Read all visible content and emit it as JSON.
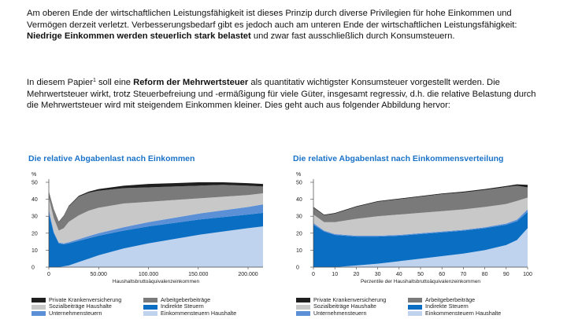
{
  "paragraph1": {
    "text_a": "Am oberen Ende der wirtschaftlichen Leistungsfähigkeit ist dieses Prinzip durch diverse Privilegien für hohe Einkommen und Vermögen derzeit verletzt. Verbesserungsbedarf gibt es jedoch auch am unteren Ende der wirtschaftlichen Leistungsfähigkeit: ",
    "bold": "Niedrige Einkommen werden steuerlich stark belastet",
    "text_b": " und zwar fast ausschließlich durch Konsumsteuern."
  },
  "paragraph2": {
    "text_a": "In diesem Papier",
    "footnote": "1",
    "text_b": " soll eine ",
    "bold": "Reform der Mehrwertsteuer",
    "text_c": " als quantitativ wichtigster Konsumsteuer vorgestellt werden. Die Mehrwertsteuer wirkt, trotz Steuerbefreiung und -ermäßigung für viele Güter, insgesamt regressiv, d.h. die relative Belastung durch die Mehrwertsteuer wird mit steigendem Einkommen kleiner. Dies geht auch aus folgender Abbildung hervor:"
  },
  "colors": {
    "private_kv": "#1f1f1f",
    "sozialbeitraege": "#c8c8c8",
    "unternehmensteuern": "#5b8fd6",
    "arbeitgeberbeitraege": "#7a7a7a",
    "indirekte_steuern": "#0a6fc2",
    "einkommensteuern": "#bfd3ef",
    "title": "#1a73c9"
  },
  "legend": [
    {
      "label": "Private Krankenversicherung",
      "color_key": "private_kv"
    },
    {
      "label": "Arbeitgeberbeiträge",
      "color_key": "arbeitgeberbeitraege"
    },
    {
      "label": "Sozialbeiträge Haushalte",
      "color_key": "sozialbeitraege"
    },
    {
      "label": "Indirekte Steuern",
      "color_key": "indirekte_steuern"
    },
    {
      "label": "Unternehmensteuern",
      "color_key": "unternehmensteuern"
    },
    {
      "label": "Einkommensteuern Haushalte",
      "color_key": "einkommensteuern"
    }
  ],
  "chart_data": [
    {
      "type": "area",
      "stacked": true,
      "title": "Die relative Abgabenlast nach Einkommen",
      "xlabel": "Haushaltsbruttoäquivalenzeinkommen",
      "ylabel": "%",
      "x_ticks": [
        "0",
        "50.000",
        "100.000",
        "150.000",
        "200.000"
      ],
      "y_ticks": [
        "0",
        "10",
        "20",
        "30",
        "40",
        "50"
      ],
      "xlim": [
        0,
        215000
      ],
      "ylim": [
        0,
        50
      ],
      "x": [
        0,
        5000,
        10000,
        15000,
        20000,
        30000,
        40000,
        50000,
        75000,
        100000,
        125000,
        150000,
        175000,
        200000,
        215000
      ],
      "series": [
        {
          "name": "Einkommensteuern Haushalte",
          "values": [
            0,
            0,
            0,
            0.5,
            1,
            3,
            5,
            7,
            11,
            14,
            16.5,
            19,
            21,
            23,
            24
          ]
        },
        {
          "name": "Indirekte Steuern",
          "values": [
            32,
            20,
            14,
            13,
            13,
            12.5,
            12,
            11.5,
            10.5,
            10,
            9.5,
            9,
            8.5,
            8,
            8
          ]
        },
        {
          "name": "Unternehmensteuern",
          "values": [
            2,
            0.8,
            0.5,
            0.5,
            0.7,
            1,
            1.3,
            1.5,
            2,
            2.5,
            3,
            3.5,
            4,
            4.5,
            5
          ]
        },
        {
          "name": "Sozialbeiträge Haushalte",
          "values": [
            7,
            8,
            7,
            9,
            12,
            14,
            15,
            15,
            14,
            12,
            10.5,
            9,
            8,
            7,
            6.5
          ]
        },
        {
          "name": "Arbeitgeberbeiträge",
          "values": [
            3,
            5,
            5,
            7,
            9,
            11,
            10.5,
            10,
            9,
            8.5,
            8,
            7.5,
            7,
            5.5,
            4
          ]
        },
        {
          "name": "Private Krankenversicherung",
          "values": [
            0.5,
            0.3,
            0.3,
            0.3,
            0.4,
            0.5,
            0.7,
            1,
            1.5,
            2,
            2,
            2,
            1.5,
            1.5,
            1.5
          ]
        }
      ]
    },
    {
      "type": "area",
      "stacked": true,
      "title": "Die relative Abgabenlast nach Einkommensverteilung",
      "xlabel": "Perzentile der Haushaltsbruttoäquivalenzeinkommen",
      "ylabel": "%",
      "x_ticks": [
        "0",
        "10",
        "20",
        "30",
        "40",
        "50",
        "60",
        "70",
        "80",
        "90",
        "100"
      ],
      "y_ticks": [
        "0",
        "10",
        "20",
        "30",
        "40",
        "50"
      ],
      "xlim": [
        0,
        100
      ],
      "ylim": [
        0,
        50
      ],
      "x": [
        0,
        5,
        10,
        20,
        30,
        40,
        50,
        60,
        70,
        80,
        90,
        95,
        100
      ],
      "series": [
        {
          "name": "Einkommensteuern Haushalte",
          "values": [
            0,
            0,
            0,
            1,
            2,
            3.5,
            5,
            6.5,
            8,
            10,
            13,
            16,
            23
          ]
        },
        {
          "name": "Indirekte Steuern",
          "values": [
            25,
            21,
            19,
            17,
            16,
            15,
            14.5,
            14,
            13.5,
            13,
            12,
            11,
            9.5
          ]
        },
        {
          "name": "Unternehmensteuern",
          "values": [
            1,
            0.5,
            0.5,
            0.5,
            0.5,
            0.5,
            0.5,
            0.5,
            0.5,
            0.5,
            0.7,
            1,
            1.5
          ]
        },
        {
          "name": "Sozialbeiträge Haushalte",
          "values": [
            5,
            5,
            7,
            10,
            11.5,
            12,
            12,
            12,
            12,
            12,
            11.5,
            11,
            7
          ]
        },
        {
          "name": "Arbeitgeberbeiträge",
          "values": [
            4,
            4,
            5,
            7,
            8.5,
            9,
            9.5,
            10,
            10,
            10,
            10,
            9,
            6
          ]
        },
        {
          "name": "Private Krankenversicherung",
          "values": [
            0.5,
            0.4,
            0.4,
            0.4,
            0.4,
            0.4,
            0.4,
            0.4,
            0.5,
            0.5,
            0.6,
            0.8,
            1.5
          ]
        }
      ]
    }
  ]
}
